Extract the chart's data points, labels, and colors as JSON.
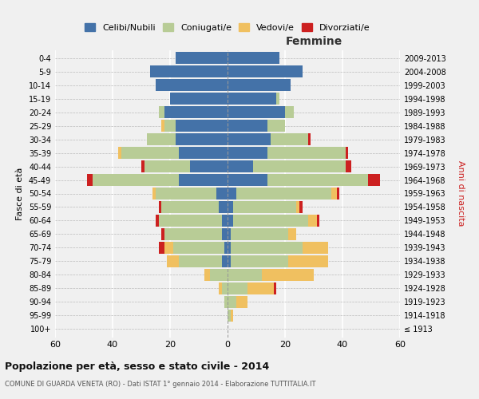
{
  "age_groups": [
    "100+",
    "95-99",
    "90-94",
    "85-89",
    "80-84",
    "75-79",
    "70-74",
    "65-69",
    "60-64",
    "55-59",
    "50-54",
    "45-49",
    "40-44",
    "35-39",
    "30-34",
    "25-29",
    "20-24",
    "15-19",
    "10-14",
    "5-9",
    "0-4"
  ],
  "birth_years": [
    "≤ 1913",
    "1914-1918",
    "1919-1923",
    "1924-1928",
    "1929-1933",
    "1934-1938",
    "1939-1943",
    "1944-1948",
    "1949-1953",
    "1954-1958",
    "1959-1963",
    "1964-1968",
    "1969-1973",
    "1974-1978",
    "1979-1983",
    "1984-1988",
    "1989-1993",
    "1994-1998",
    "1999-2003",
    "2004-2008",
    "2009-2013"
  ],
  "males": {
    "celibi": [
      0,
      0,
      0,
      0,
      0,
      2,
      1,
      2,
      2,
      3,
      4,
      17,
      13,
      17,
      18,
      18,
      22,
      20,
      25,
      27,
      18
    ],
    "coniugati": [
      0,
      0,
      1,
      2,
      6,
      15,
      18,
      20,
      22,
      20,
      21,
      30,
      16,
      20,
      10,
      4,
      2,
      0,
      0,
      0,
      0
    ],
    "vedovi": [
      0,
      0,
      0,
      1,
      2,
      4,
      3,
      0,
      0,
      0,
      1,
      0,
      0,
      1,
      0,
      1,
      0,
      0,
      0,
      0,
      0
    ],
    "divorziati": [
      0,
      0,
      0,
      0,
      0,
      0,
      2,
      1,
      1,
      1,
      0,
      2,
      1,
      0,
      0,
      0,
      0,
      0,
      0,
      0,
      0
    ]
  },
  "females": {
    "nubili": [
      0,
      0,
      0,
      0,
      0,
      1,
      1,
      1,
      2,
      2,
      3,
      14,
      9,
      14,
      15,
      14,
      20,
      17,
      22,
      26,
      18
    ],
    "coniugate": [
      0,
      1,
      3,
      7,
      12,
      20,
      25,
      20,
      26,
      22,
      33,
      35,
      32,
      27,
      13,
      6,
      3,
      1,
      0,
      0,
      0
    ],
    "vedove": [
      0,
      1,
      4,
      9,
      18,
      14,
      9,
      3,
      3,
      1,
      2,
      0,
      0,
      0,
      0,
      0,
      0,
      0,
      0,
      0,
      0
    ],
    "divorziate": [
      0,
      0,
      0,
      1,
      0,
      0,
      0,
      0,
      1,
      1,
      1,
      4,
      2,
      1,
      1,
      0,
      0,
      0,
      0,
      0,
      0
    ]
  },
  "colors": {
    "celibi": "#4472a8",
    "coniugati": "#b8cc96",
    "vedovi": "#f0c060",
    "divorziati": "#cc2020"
  },
  "xlim": 60,
  "title": "Popolazione per età, sesso e stato civile - 2014",
  "subtitle": "COMUNE DI GUARDA VENETA (RO) - Dati ISTAT 1° gennaio 2014 - Elaborazione TUTTITALIA.IT",
  "xlabel_right": "Femmine",
  "ylabel": "Fasce di età",
  "ylabel_right": "Anni di nascita",
  "legend_labels": [
    "Celibi/Nubili",
    "Coniugati/e",
    "Vedovi/e",
    "Divorziati/e"
  ],
  "bg_color": "#f0f0f0",
  "bar_height": 0.85
}
